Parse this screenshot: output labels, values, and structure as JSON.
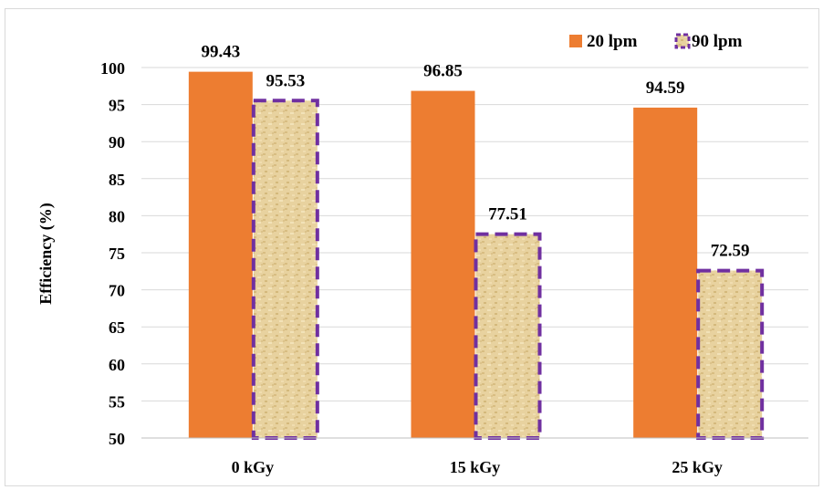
{
  "chart_data": {
    "type": "bar",
    "title": "",
    "xlabel": "",
    "ylabel": "Efficiency (%)",
    "categories": [
      "0 kGy",
      "15 kGy",
      "25 kGy"
    ],
    "series": [
      {
        "name": "20 lpm",
        "values": [
          99.43,
          96.85,
          94.59
        ],
        "labels": [
          "99.43",
          "96.85",
          "94.59"
        ],
        "color": "#ed7d31",
        "fill": "solid"
      },
      {
        "name": "90 lpm",
        "values": [
          95.53,
          77.51,
          72.59
        ],
        "labels": [
          "95.53",
          "77.51",
          "72.59"
        ],
        "color": "#e6cf9c",
        "border": "#7030a0",
        "fill": "textured",
        "border_style": "dashed"
      }
    ],
    "ylim": [
      50,
      100
    ],
    "yticks": [
      "50",
      "55",
      "60",
      "65",
      "70",
      "75",
      "80",
      "85",
      "90",
      "95",
      "100"
    ],
    "grid": true,
    "legend_position": "top-right"
  }
}
